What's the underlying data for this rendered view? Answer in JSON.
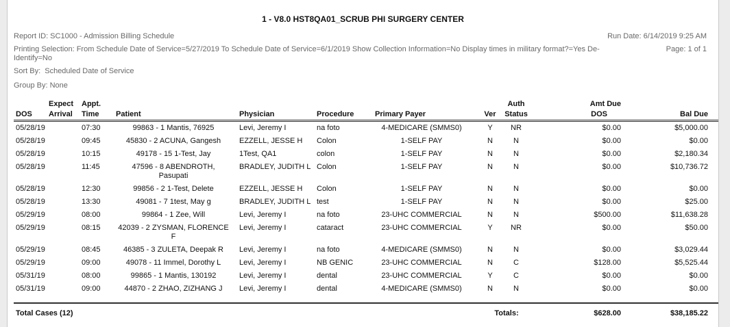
{
  "colors": {
    "viewer_background": "#ececec",
    "page_background": "#ffffff",
    "meta_text": "#686868",
    "table_text": "#111111",
    "rule": "#2f2f2f"
  },
  "header": {
    "title": "1 - V8.0 HST8QA01_SCRUB PHI SURGERY CENTER",
    "report_id": "Report ID: SC1000 - Admission Billing Schedule",
    "run_date": "Run Date: 6/14/2019 9:25 AM",
    "printing_selection_line1": "Printing Selection: From Schedule Date of Service=5/27/2019 To Schedule Date of Service=6/1/2019 Show Collection Information=No Display times in military format?=Yes De-",
    "printing_selection_line2": "Identify=No",
    "page_info": "Page: 1 of 1",
    "sort_by": "Sort By:  Scheduled Date of Service",
    "group_by": "Group By: None"
  },
  "table": {
    "columns_top": {
      "expect": "Expect",
      "appt": "Appt.",
      "auth": "Auth",
      "amt_due": "Amt Due"
    },
    "columns": [
      "DOS",
      "Arrival",
      "Time",
      "Patient",
      "Physician",
      "Procedure",
      "Primary Payer",
      "Ver",
      "Status",
      "DOS",
      "Bal Due"
    ],
    "rows": [
      {
        "dos": "05/28/19",
        "arrival": "",
        "time": "07:30",
        "patient": "99863 - 1 Mantis, 76925",
        "physician": "Levi, Jeremy I",
        "procedure": "na foto",
        "payer": "4-MEDICARE (SMMS0)",
        "ver": "Y",
        "auth": "NR",
        "amt_due": "$0.00",
        "bal_due": "$5,000.00"
      },
      {
        "dos": "05/28/19",
        "arrival": "",
        "time": "09:45",
        "patient": "45830 - 2 ACUNA, Gangesh",
        "physician": "EZZELL, JESSE H",
        "procedure": "Colon",
        "payer": "1-SELF PAY",
        "ver": "N",
        "auth": "N",
        "amt_due": "$0.00",
        "bal_due": "$0.00"
      },
      {
        "dos": "05/28/19",
        "arrival": "",
        "time": "10:15",
        "patient": "49178 - 15 1-Test, Jay",
        "physician": "1Test, QA1",
        "procedure": "colon",
        "payer": "1-SELF PAY",
        "ver": "N",
        "auth": "N",
        "amt_due": "$0.00",
        "bal_due": "$2,180.34"
      },
      {
        "dos": "05/28/19",
        "arrival": "",
        "time": "11:45",
        "patient": "47596 - 8 ABENDROTH, Pasupati",
        "physician": "BRADLEY, JUDITH L",
        "procedure": "Colon",
        "payer": "1-SELF PAY",
        "ver": "N",
        "auth": "N",
        "amt_due": "$0.00",
        "bal_due": "$10,736.72"
      },
      {
        "dos": "05/28/19",
        "arrival": "",
        "time": "12:30",
        "patient": "99856 - 2 1-Test, Delete",
        "physician": "EZZELL, JESSE H",
        "procedure": "Colon",
        "payer": "1-SELF PAY",
        "ver": "N",
        "auth": "N",
        "amt_due": "$0.00",
        "bal_due": "$0.00"
      },
      {
        "dos": "05/28/19",
        "arrival": "",
        "time": "13:30",
        "patient": "49081 - 7 1test, May g",
        "physician": "BRADLEY, JUDITH L",
        "procedure": "test",
        "payer": "1-SELF PAY",
        "ver": "N",
        "auth": "N",
        "amt_due": "$0.00",
        "bal_due": "$25.00"
      },
      {
        "dos": "05/29/19",
        "arrival": "",
        "time": "08:00",
        "patient": "99864 - 1 Zee, Will",
        "physician": "Levi, Jeremy I",
        "procedure": "na foto",
        "payer": "23-UHC COMMERCIAL",
        "ver": "N",
        "auth": "N",
        "amt_due": "$500.00",
        "bal_due": "$11,638.28"
      },
      {
        "dos": "05/29/19",
        "arrival": "",
        "time": "08:15",
        "patient": "42039 - 2 ZYSMAN, FLORENCE F",
        "physician": "Levi, Jeremy I",
        "procedure": "cataract",
        "payer": "23-UHC COMMERCIAL",
        "ver": "Y",
        "auth": "NR",
        "amt_due": "$0.00",
        "bal_due": "$50.00"
      },
      {
        "dos": "05/29/19",
        "arrival": "",
        "time": "08:45",
        "patient": "46385 - 3 ZULETA, Deepak R",
        "physician": "Levi, Jeremy I",
        "procedure": "na foto",
        "payer": "4-MEDICARE (SMMS0)",
        "ver": "N",
        "auth": "N",
        "amt_due": "$0.00",
        "bal_due": "$3,029.44"
      },
      {
        "dos": "05/29/19",
        "arrival": "",
        "time": "09:00",
        "patient": "49078 - 11 Immel, Dorothy L",
        "physician": "Levi, Jeremy I",
        "procedure": "NB GENIC",
        "payer": "23-UHC COMMERCIAL",
        "ver": "N",
        "auth": "C",
        "amt_due": "$128.00",
        "bal_due": "$5,525.44"
      },
      {
        "dos": "05/31/19",
        "arrival": "",
        "time": "08:00",
        "patient": "99865 - 1 Mantis, 130192",
        "physician": "Levi, Jeremy I",
        "procedure": "dental",
        "payer": "23-UHC COMMERCIAL",
        "ver": "Y",
        "auth": "C",
        "amt_due": "$0.00",
        "bal_due": "$0.00"
      },
      {
        "dos": "05/31/19",
        "arrival": "",
        "time": "09:00",
        "patient": "44870 - 2 ZHAO, ZIZHANG J",
        "physician": "Levi, Jeremy I",
        "procedure": "dental",
        "payer": "4-MEDICARE (SMMS0)",
        "ver": "N",
        "auth": "N",
        "amt_due": "$0.00",
        "bal_due": "$0.00"
      }
    ]
  },
  "footer": {
    "total_cases": "Total Cases (12)",
    "totals_label": "Totals:",
    "amt_due_total": "$628.00",
    "bal_due_total": "$38,185.22"
  }
}
